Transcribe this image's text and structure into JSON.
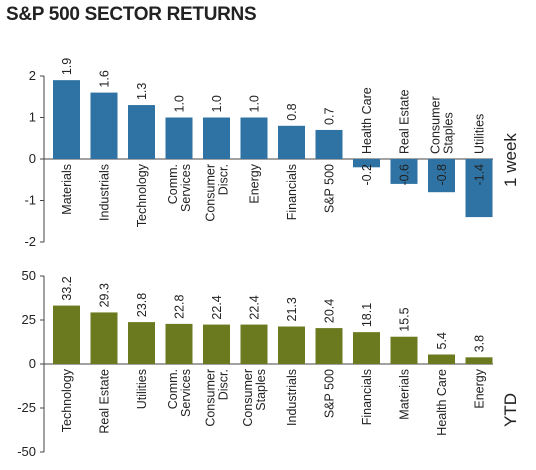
{
  "title": "S&P 500 SECTOR RETURNS",
  "chart_data": [
    {
      "type": "bar",
      "side_label": "1 week",
      "categories": [
        "Materials",
        "Industrials",
        "Technology",
        "Comm.\nServices",
        "Consumer\nDiscr.",
        "Energy",
        "Financials",
        "S&P 500",
        "Health Care",
        "Real Estate",
        "Consumer\nStaples",
        "Utilities"
      ],
      "values": [
        1.9,
        1.6,
        1.3,
        1.0,
        1.0,
        1.0,
        0.8,
        0.7,
        -0.2,
        -0.6,
        -0.8,
        -1.4
      ],
      "value_labels": [
        "1.9",
        "1.6",
        "1.3",
        "1.0",
        "1.0",
        "1.0",
        "0.8",
        "0.7",
        "-0.2",
        "-0.6",
        "-0.8",
        "-1.4"
      ],
      "ylim": [
        -2,
        2
      ],
      "yticks": [
        2,
        1,
        0,
        -1,
        -2
      ],
      "ytick_labels": [
        "2",
        "1",
        "0",
        "-1",
        "-2"
      ],
      "color": "#2e73a3",
      "grid": false
    },
    {
      "type": "bar",
      "side_label": "YTD",
      "categories": [
        "Technology",
        "Real Estate",
        "Utilities",
        "Comm.\nServices",
        "Consumer\nDiscr.",
        "Consumer\nStaples",
        "Industrials",
        "S&P 500",
        "Financials",
        "Materials",
        "Health Care",
        "Energy"
      ],
      "values": [
        33.2,
        29.3,
        23.8,
        22.8,
        22.4,
        22.4,
        21.3,
        20.4,
        18.1,
        15.5,
        5.4,
        3.8
      ],
      "value_labels": [
        "33.2",
        "29.3",
        "23.8",
        "22.8",
        "22.4",
        "22.4",
        "21.3",
        "20.4",
        "18.1",
        "15.5",
        "5.4",
        "3.8"
      ],
      "ylim": [
        -50,
        50
      ],
      "yticks": [
        50,
        25,
        0,
        -25,
        -50
      ],
      "ytick_labels": [
        "50",
        "25",
        "0",
        "-25",
        "-50"
      ],
      "color": "#6b7a1f",
      "grid": false
    }
  ]
}
